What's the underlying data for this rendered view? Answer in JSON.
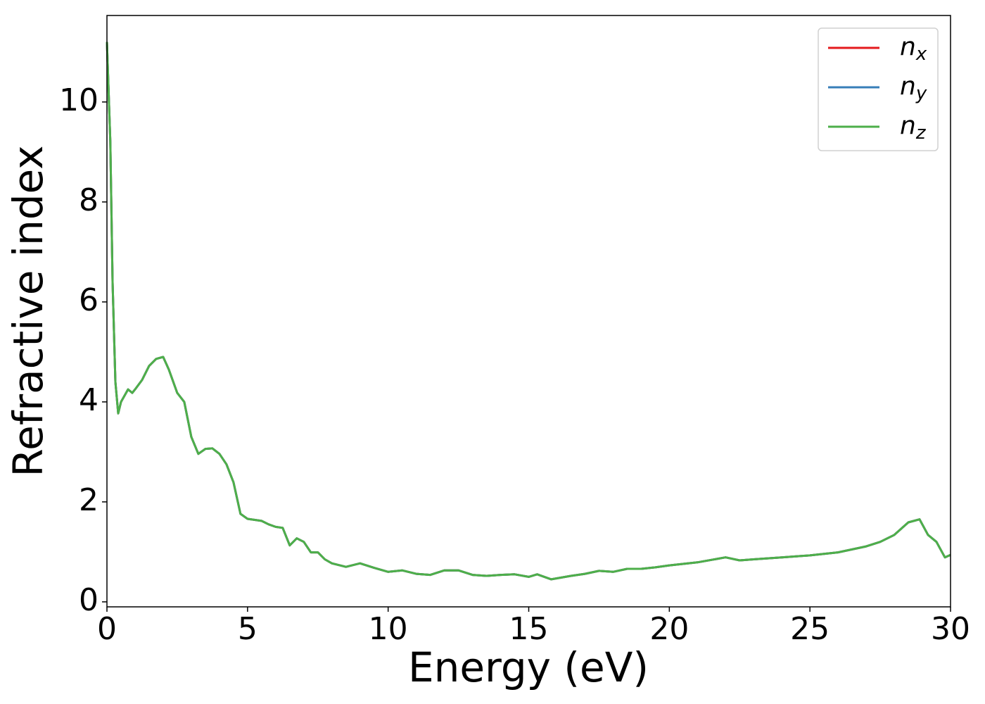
{
  "chart_data": {
    "type": "line",
    "xlabel": "Energy (eV)",
    "ylabel": "Refractive index",
    "x": [
      0,
      0.12,
      0.2,
      0.3,
      0.4,
      0.5,
      0.75,
      0.9,
      1.0,
      1.25,
      1.5,
      1.75,
      2.0,
      2.2,
      2.5,
      2.75,
      3.0,
      3.25,
      3.5,
      3.75,
      4.0,
      4.25,
      4.5,
      4.75,
      5.0,
      5.5,
      5.75,
      6.0,
      6.25,
      6.5,
      6.75,
      7.0,
      7.25,
      7.5,
      7.75,
      8.0,
      8.5,
      9.0,
      9.5,
      10,
      10.5,
      11,
      11.5,
      12,
      12.5,
      13,
      13.5,
      14,
      14.5,
      15,
      15.3,
      15.8,
      16.5,
      17,
      17.5,
      18,
      18.5,
      19,
      19.5,
      20,
      21,
      22,
      22.5,
      23,
      24,
      25,
      26,
      27,
      27.5,
      28,
      28.5,
      28.9,
      29.2,
      29.5,
      29.8,
      30
    ],
    "series": [
      {
        "name": "n_x",
        "color": "#e41a1c",
        "values": [
          11.2,
          9.2,
          6.4,
          4.4,
          3.77,
          4.0,
          4.25,
          4.18,
          4.25,
          4.44,
          4.72,
          4.86,
          4.9,
          4.65,
          4.18,
          4.0,
          3.3,
          2.96,
          3.06,
          3.07,
          2.96,
          2.75,
          2.39,
          1.76,
          1.66,
          1.62,
          1.55,
          1.5,
          1.48,
          1.13,
          1.27,
          1.2,
          0.99,
          0.99,
          0.85,
          0.77,
          0.7,
          0.77,
          0.68,
          0.6,
          0.63,
          0.56,
          0.54,
          0.63,
          0.63,
          0.54,
          0.52,
          0.54,
          0.55,
          0.5,
          0.55,
          0.45,
          0.52,
          0.56,
          0.62,
          0.6,
          0.66,
          0.66,
          0.69,
          0.73,
          0.79,
          0.89,
          0.83,
          0.85,
          0.89,
          0.93,
          0.99,
          1.11,
          1.2,
          1.34,
          1.59,
          1.65,
          1.34,
          1.2,
          0.89,
          0.94
        ]
      },
      {
        "name": "n_y",
        "color": "#377eb8",
        "values": [
          11.2,
          9.2,
          6.4,
          4.4,
          3.77,
          4.0,
          4.25,
          4.18,
          4.25,
          4.44,
          4.72,
          4.86,
          4.9,
          4.65,
          4.18,
          4.0,
          3.3,
          2.96,
          3.06,
          3.07,
          2.96,
          2.75,
          2.39,
          1.76,
          1.66,
          1.62,
          1.55,
          1.5,
          1.48,
          1.13,
          1.27,
          1.2,
          0.99,
          0.99,
          0.85,
          0.77,
          0.7,
          0.77,
          0.68,
          0.6,
          0.63,
          0.56,
          0.54,
          0.63,
          0.63,
          0.54,
          0.52,
          0.54,
          0.55,
          0.5,
          0.55,
          0.45,
          0.52,
          0.56,
          0.62,
          0.6,
          0.66,
          0.66,
          0.69,
          0.73,
          0.79,
          0.89,
          0.83,
          0.85,
          0.89,
          0.93,
          0.99,
          1.11,
          1.2,
          1.34,
          1.59,
          1.65,
          1.34,
          1.2,
          0.89,
          0.94
        ]
      },
      {
        "name": "n_z",
        "color": "#4daf4a",
        "values": [
          11.2,
          9.2,
          6.4,
          4.4,
          3.77,
          4.0,
          4.25,
          4.18,
          4.25,
          4.44,
          4.72,
          4.86,
          4.9,
          4.65,
          4.18,
          4.0,
          3.3,
          2.96,
          3.06,
          3.07,
          2.96,
          2.75,
          2.39,
          1.76,
          1.66,
          1.62,
          1.55,
          1.5,
          1.48,
          1.13,
          1.27,
          1.2,
          0.99,
          0.99,
          0.85,
          0.77,
          0.7,
          0.77,
          0.68,
          0.6,
          0.63,
          0.56,
          0.54,
          0.63,
          0.63,
          0.54,
          0.52,
          0.54,
          0.55,
          0.5,
          0.55,
          0.45,
          0.52,
          0.56,
          0.62,
          0.6,
          0.66,
          0.66,
          0.69,
          0.73,
          0.79,
          0.89,
          0.83,
          0.85,
          0.89,
          0.93,
          0.99,
          1.11,
          1.2,
          1.34,
          1.59,
          1.65,
          1.34,
          1.2,
          0.89,
          0.94
        ]
      }
    ],
    "xlim": [
      0,
      30
    ],
    "xticks": [
      0,
      5,
      10,
      15,
      20,
      25,
      30
    ],
    "ylim": [
      -0.1,
      11.73
    ],
    "yticks": [
      0,
      2,
      4,
      6,
      8,
      10
    ],
    "grid": false,
    "legend": "upper right"
  }
}
